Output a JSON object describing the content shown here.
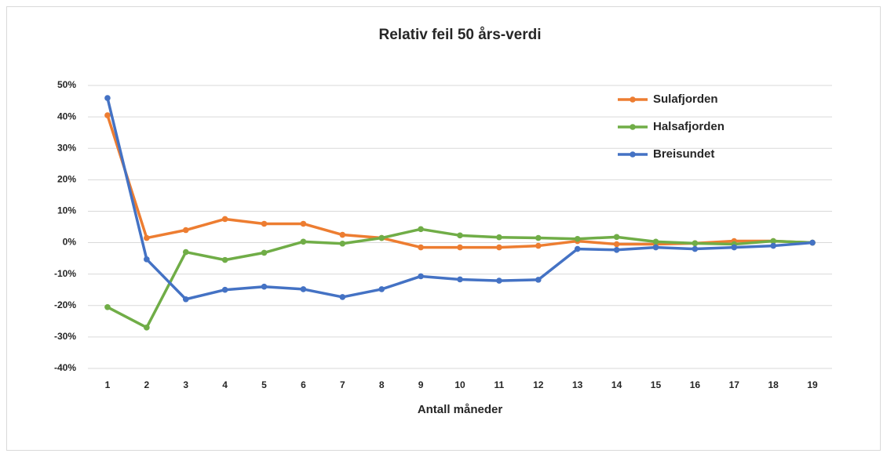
{
  "chart_data": {
    "type": "line",
    "title": "Relativ feil 50 års-verdi",
    "x_label": "Antall måneder",
    "categories": [
      "1",
      "2",
      "3",
      "4",
      "5",
      "6",
      "7",
      "8",
      "9",
      "10",
      "11",
      "12",
      "13",
      "14",
      "15",
      "16",
      "17",
      "18",
      "19"
    ],
    "series": [
      {
        "name": "Sulafjorden",
        "color": "#ed7d31",
        "values": [
          40.5,
          1.5,
          4,
          7.5,
          6,
          6,
          2.5,
          1.5,
          -1.5,
          -1.5,
          -1.5,
          -1,
          0.5,
          -0.5,
          -0.5,
          -0.2,
          0.5,
          0.5,
          0
        ]
      },
      {
        "name": "Halsafjorden",
        "color": "#70ad47",
        "values": [
          -20.5,
          -27,
          -3,
          -5.5,
          -3.2,
          0.3,
          -0.3,
          1.5,
          4.3,
          2.3,
          1.7,
          1.5,
          1.2,
          1.8,
          0.3,
          -0.2,
          -0.5,
          0.5,
          0
        ]
      },
      {
        "name": "Breisundet",
        "color": "#4472c4",
        "values": [
          46,
          -5.3,
          -18,
          -15,
          -14,
          -14.8,
          -17.3,
          -14.8,
          -10.7,
          -11.7,
          -12.1,
          -11.8,
          -2,
          -2.3,
          -1.5,
          -2,
          -1.5,
          -1,
          0
        ]
      }
    ],
    "ylim": [
      -40,
      50
    ],
    "yticks": [
      {
        "value": -40,
        "label": "-40%"
      },
      {
        "value": -30,
        "label": "-30%"
      },
      {
        "value": -20,
        "label": "-20%"
      },
      {
        "value": -10,
        "label": "-10%"
      },
      {
        "value": 0,
        "label": "0%"
      },
      {
        "value": 10,
        "label": "10%"
      },
      {
        "value": 20,
        "label": "20%"
      },
      {
        "value": 30,
        "label": "30%"
      },
      {
        "value": 40,
        "label": "40%"
      },
      {
        "value": 50,
        "label": "50%"
      }
    ],
    "grid": true,
    "legend": "top-right"
  }
}
